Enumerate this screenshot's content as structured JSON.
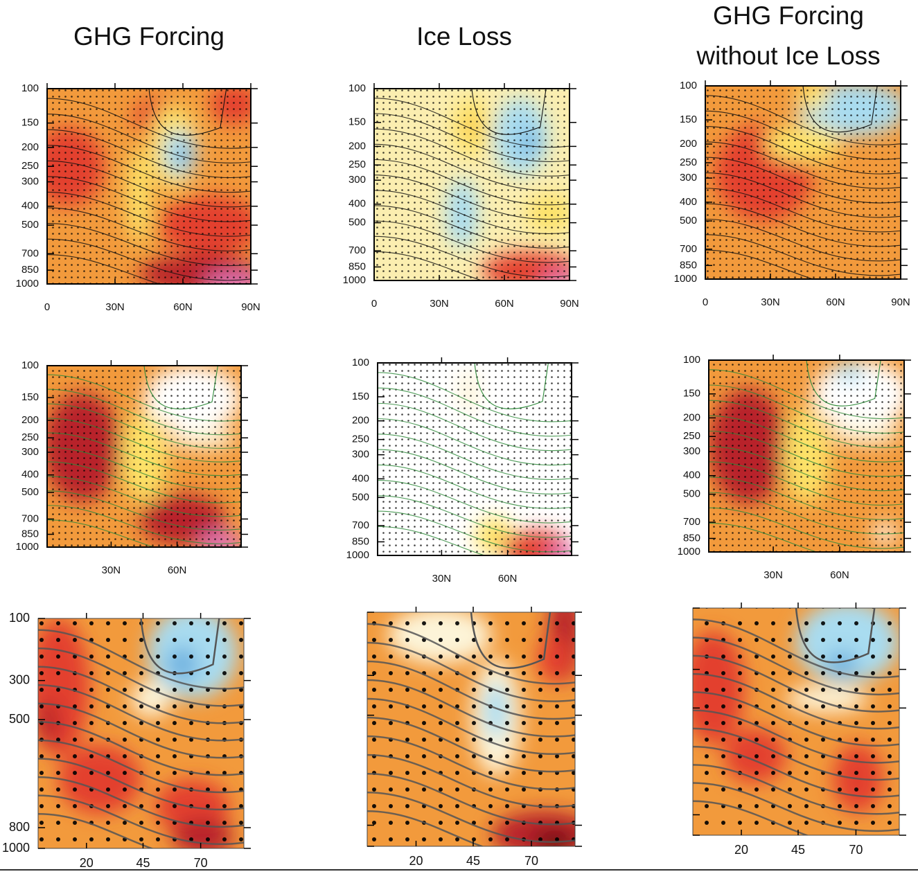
{
  "columns": [
    {
      "title": [
        "GHG Forcing"
      ]
    },
    {
      "title": [
        "Ice Loss"
      ]
    },
    {
      "title": [
        "GHG Forcing",
        "without Ice Loss"
      ]
    }
  ],
  "rows": [
    {
      "yticks": [
        100,
        150,
        200,
        250,
        300,
        400,
        500,
        700,
        850,
        1000
      ],
      "xticks": [
        "0",
        "30N",
        "60N",
        "90N"
      ]
    },
    {
      "yticks": [
        100,
        150,
        200,
        250,
        300,
        400,
        500,
        700,
        850,
        1000
      ],
      "xticks": [
        "30N",
        "60N"
      ]
    },
    {
      "yticks": [
        100,
        300,
        500,
        800,
        1000
      ],
      "xticks": [
        20,
        45,
        70
      ]
    }
  ]
}
